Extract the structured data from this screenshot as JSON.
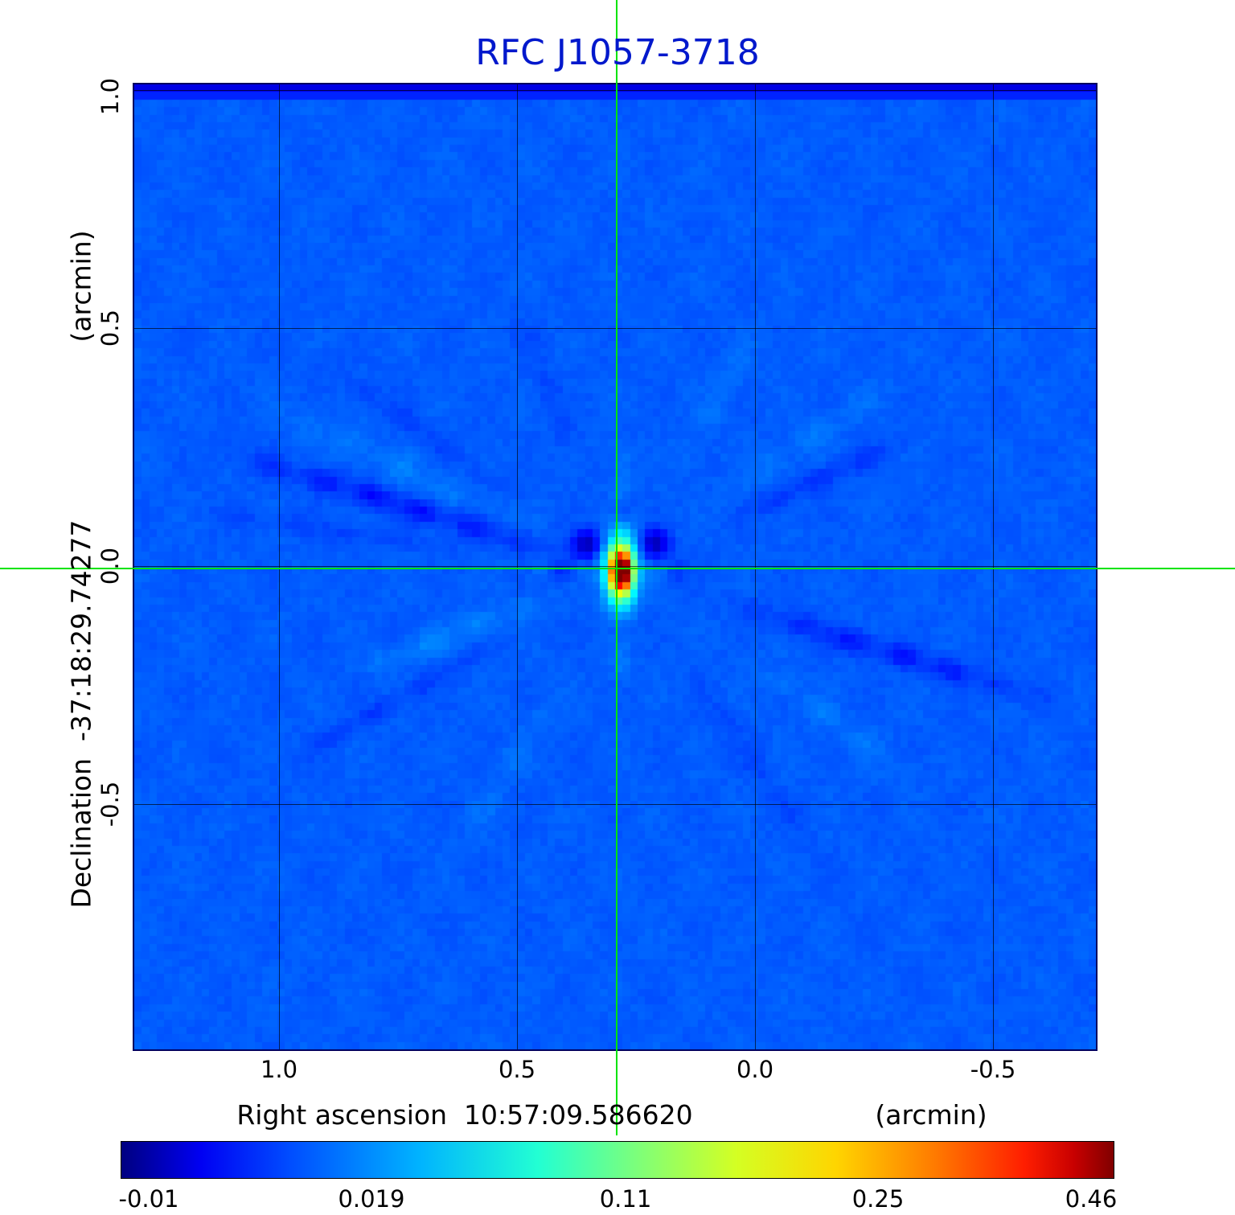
{
  "title": "RFC J1057-3718",
  "title_color": "#0018cc",
  "axes": {
    "x": {
      "label": "Right ascension  10:57:09.586620",
      "unit": "(arcmin)",
      "ticks": [
        "1.0",
        "0.5",
        "0.0",
        "-0.5"
      ]
    },
    "y": {
      "label": "Declination  -37:18:29.74277",
      "unit": "(arcmin)",
      "ticks": [
        "1.0",
        "0.5",
        "0.0",
        "-0.5"
      ]
    }
  },
  "colorbar": {
    "colormap": "jet",
    "ticks": [
      "-0.01",
      "0.019",
      "0.11",
      "0.25",
      "0.46"
    ]
  },
  "crosshair": {
    "color": "#00e400"
  },
  "chart_data": {
    "type": "heatmap",
    "title": "RFC J1057-3718",
    "xlabel": "Right ascension 10:57:09.586620 (arcmin)",
    "ylabel": "Declination -37:18:29.74277 (arcmin)",
    "x_ticks": [
      1.0,
      0.5,
      0.0,
      -0.5
    ],
    "y_ticks": [
      1.0,
      0.5,
      0.0,
      -0.5
    ],
    "x_range": [
      1.31,
      -0.72
    ],
    "y_range": [
      -1.02,
      1.02
    ],
    "grid": true,
    "colormap": "jet",
    "intensity_scale_ticks": [
      -0.01,
      0.019,
      0.11,
      0.25,
      0.46
    ],
    "intensity_range": [
      -0.01,
      0.46
    ],
    "source": {
      "x_arcmin": 0.29,
      "y_arcmin": 0.0,
      "peak_intensity": 0.46,
      "morphology": "compact bright core (red/orange), vertically elongated halo (yellow-green-cyan), dark negative sidelobes flanking core, faint radial dirty-beam streaks on blue background"
    },
    "crosshair_arcmin": {
      "x": 0.29,
      "y": 0.0
    },
    "source_position_fraction": {
      "x": 0.502,
      "y": 0.5005
    }
  }
}
